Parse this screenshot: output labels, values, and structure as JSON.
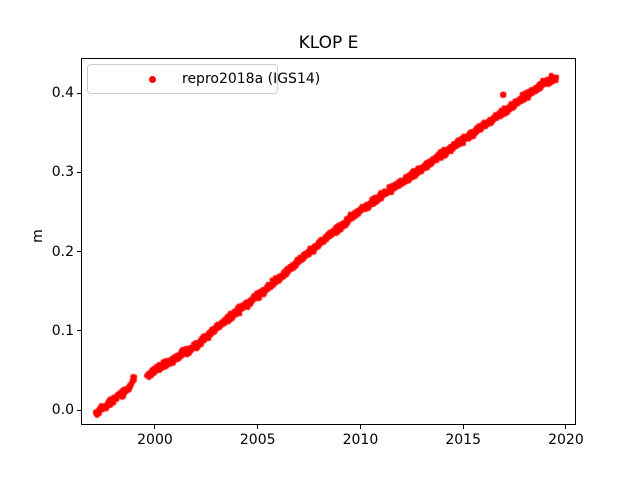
{
  "figure": {
    "background": "#ffffff",
    "text_color": "#000000"
  },
  "chart_data": {
    "type": "scatter",
    "title": "KLOP E",
    "xlabel": "",
    "ylabel": "m",
    "grid": false,
    "xlim": [
      1996.4,
      2020.49
    ],
    "ylim": [
      -0.0189,
      0.4442
    ],
    "xticks": [
      {
        "value": 2000,
        "label": "2000"
      },
      {
        "value": 2005,
        "label": "2005"
      },
      {
        "value": 2010,
        "label": "2010"
      },
      {
        "value": 2015,
        "label": "2015"
      },
      {
        "value": 2020,
        "label": "2020"
      }
    ],
    "yticks": [
      {
        "value": 0.0,
        "label": "0.0"
      },
      {
        "value": 0.1,
        "label": "0.1"
      },
      {
        "value": 0.2,
        "label": "0.2"
      },
      {
        "value": 0.3,
        "label": "0.3"
      },
      {
        "value": 0.4,
        "label": "0.4"
      }
    ],
    "legend": {
      "location": "upper left",
      "border_color": "#cccccc",
      "background": "#ffffff"
    },
    "series": [
      {
        "name": "repro2018a (IGS14)",
        "color": "#ff0000",
        "marker": "dot",
        "marker_radius_px": 2.4,
        "noise_std_m": 0.0022,
        "sample_step_years": 0.01,
        "x_start": 1997.05,
        "x_end": 2019.5,
        "trend_anchors": [
          [
            1997.05,
            -0.003
          ],
          [
            1997.2,
            0.0
          ],
          [
            1997.45,
            0.004
          ],
          [
            1997.7,
            0.009
          ],
          [
            1997.95,
            0.015
          ],
          [
            1998.07,
            0.017
          ],
          [
            1998.3,
            0.021
          ],
          [
            1998.55,
            0.026
          ],
          [
            1998.75,
            0.031
          ],
          [
            1998.88,
            0.038
          ],
          [
            1998.95,
            0.041
          ],
          [
            1999.55,
            0.044
          ],
          [
            1999.8,
            0.048
          ],
          [
            2000.0,
            0.053
          ],
          [
            2000.4,
            0.058
          ],
          [
            2000.8,
            0.063
          ],
          [
            2001.1,
            0.069
          ],
          [
            2001.3,
            0.073
          ],
          [
            2001.6,
            0.076
          ],
          [
            2002.0,
            0.084
          ],
          [
            2002.5,
            0.095
          ],
          [
            2003.0,
            0.106
          ],
          [
            2003.5,
            0.116
          ],
          [
            2004.0,
            0.127
          ],
          [
            2004.5,
            0.136
          ],
          [
            2005.0,
            0.146
          ],
          [
            2005.5,
            0.157
          ],
          [
            2006.0,
            0.168
          ],
          [
            2006.5,
            0.179
          ],
          [
            2007.0,
            0.19
          ],
          [
            2007.5,
            0.201
          ],
          [
            2008.0,
            0.212
          ],
          [
            2008.5,
            0.223
          ],
          [
            2009.0,
            0.233
          ],
          [
            2009.5,
            0.244
          ],
          [
            2010.0,
            0.254
          ],
          [
            2010.5,
            0.263
          ],
          [
            2011.0,
            0.272
          ],
          [
            2011.5,
            0.281
          ],
          [
            2012.0,
            0.289
          ],
          [
            2012.5,
            0.298
          ],
          [
            2013.0,
            0.307
          ],
          [
            2013.5,
            0.316
          ],
          [
            2014.0,
            0.325
          ],
          [
            2014.5,
            0.334
          ],
          [
            2015.0,
            0.343
          ],
          [
            2015.5,
            0.352
          ],
          [
            2016.0,
            0.361
          ],
          [
            2016.5,
            0.37
          ],
          [
            2017.0,
            0.379
          ],
          [
            2017.5,
            0.388
          ],
          [
            2018.0,
            0.398
          ],
          [
            2018.5,
            0.407
          ],
          [
            2019.0,
            0.415
          ],
          [
            2019.5,
            0.421
          ]
        ],
        "gaps": [
          [
            1997.97,
            1998.09
          ],
          [
            1998.97,
            1999.53
          ]
        ],
        "outliers": [
          [
            2016.9,
            0.399
          ]
        ]
      }
    ]
  }
}
